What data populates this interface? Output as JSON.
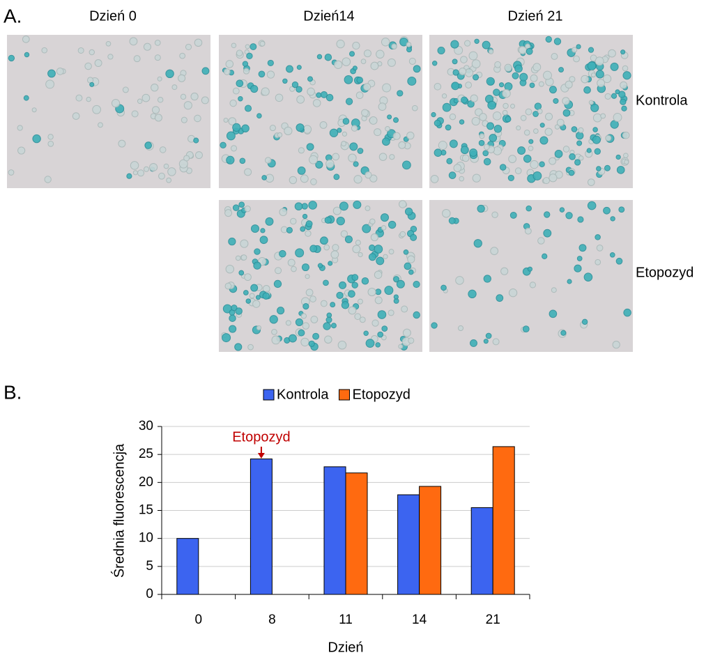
{
  "panel_a": {
    "label": "A.",
    "columns": [
      "Dzień 0",
      "Dzień14",
      "Dzień 21"
    ],
    "rows": [
      "Kontrola",
      "Etopozyd"
    ]
  },
  "panel_b": {
    "label": "B."
  },
  "chart_data": {
    "type": "bar",
    "categories": [
      "0",
      "8",
      "11",
      "14",
      "21"
    ],
    "series": [
      {
        "name": "Kontrola",
        "color": "#3c64f0",
        "values": [
          10,
          24.2,
          22.8,
          17.8,
          15.5
        ]
      },
      {
        "name": "Etopozyd",
        "color": "#ff6a10",
        "values": [
          null,
          null,
          21.7,
          19.3,
          26.4
        ]
      }
    ],
    "ylim": [
      0,
      30
    ],
    "yticks": [
      0,
      5,
      10,
      15,
      20,
      25,
      30
    ],
    "grid": true,
    "y_label": "Średnia fluorescencja",
    "x_label": "Dzień",
    "annotation": "Etopozyd",
    "legend": "top"
  }
}
